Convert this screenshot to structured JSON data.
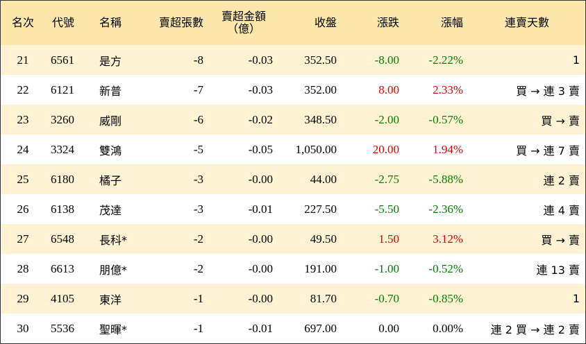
{
  "headers": {
    "rank": "名次",
    "code": "代號",
    "name": "名稱",
    "net_sell_lots": "賣超張數",
    "net_sell_amount_line1": "賣超金額",
    "net_sell_amount_line2": "（億）",
    "close": "收盤",
    "change": "漲跌",
    "change_pct": "漲幅",
    "streak": "連賣天數"
  },
  "colors": {
    "header_bg": "#fde7ac",
    "odd_row_bg": "#fff3d4",
    "up": "#e00000",
    "down": "#008000"
  },
  "rows": [
    {
      "rank": "21",
      "code": "6561",
      "name": "是方",
      "lots": "-8",
      "amount": "-0.03",
      "close": "352.50",
      "change": "-8.00",
      "pct": "-2.22%",
      "dir": "down",
      "streak": "1"
    },
    {
      "rank": "22",
      "code": "6121",
      "name": "新普",
      "lots": "-7",
      "amount": "-0.03",
      "close": "352.00",
      "change": "8.00",
      "pct": "2.33%",
      "dir": "up",
      "streak": "買 → 連 3 賣"
    },
    {
      "rank": "23",
      "code": "3260",
      "name": "威剛",
      "lots": "-6",
      "amount": "-0.02",
      "close": "348.50",
      "change": "-2.00",
      "pct": "-0.57%",
      "dir": "down",
      "streak": "買 → 賣"
    },
    {
      "rank": "24",
      "code": "3324",
      "name": "雙鴻",
      "lots": "-5",
      "amount": "-0.05",
      "close": "1,050.00",
      "change": "20.00",
      "pct": "1.94%",
      "dir": "up",
      "streak": "買 → 連 7 賣"
    },
    {
      "rank": "25",
      "code": "6180",
      "name": "橘子",
      "lots": "-3",
      "amount": "-0.00",
      "close": "44.00",
      "change": "-2.75",
      "pct": "-5.88%",
      "dir": "down",
      "streak": "連 2 賣"
    },
    {
      "rank": "26",
      "code": "6138",
      "name": "茂達",
      "lots": "-3",
      "amount": "-0.01",
      "close": "227.50",
      "change": "-5.50",
      "pct": "-2.36%",
      "dir": "down",
      "streak": "連 4 賣"
    },
    {
      "rank": "27",
      "code": "6548",
      "name": "長科*",
      "lots": "-2",
      "amount": "-0.00",
      "close": "49.50",
      "change": "1.50",
      "pct": "3.12%",
      "dir": "up",
      "streak": "買 → 賣"
    },
    {
      "rank": "28",
      "code": "6613",
      "name": "朋億*",
      "lots": "-2",
      "amount": "-0.00",
      "close": "191.00",
      "change": "-1.00",
      "pct": "-0.52%",
      "dir": "down",
      "streak": "連 13 賣"
    },
    {
      "rank": "29",
      "code": "4105",
      "name": "東洋",
      "lots": "-1",
      "amount": "-0.00",
      "close": "81.70",
      "change": "-0.70",
      "pct": "-0.85%",
      "dir": "down",
      "streak": "1"
    },
    {
      "rank": "30",
      "code": "5536",
      "name": "聖暉*",
      "lots": "-1",
      "amount": "-0.01",
      "close": "697.00",
      "change": "0.00",
      "pct": "0.00%",
      "dir": "flat",
      "streak": "連 2 買 → 連 2 賣"
    }
  ]
}
